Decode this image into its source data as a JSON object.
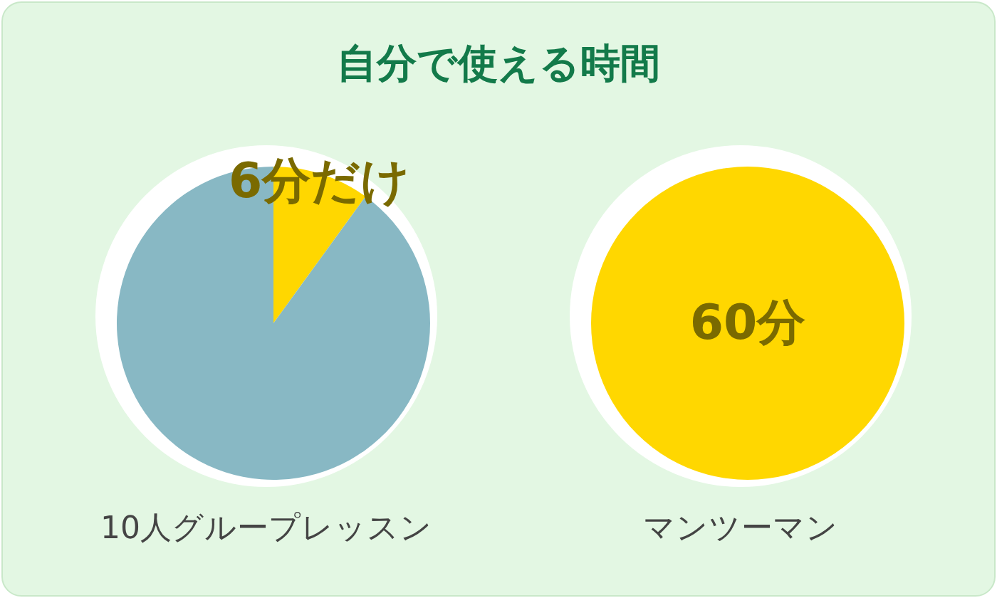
{
  "chart_data": [
    {
      "type": "pie",
      "title": "自分で使える時間",
      "xlabel": "10人グループレッスン",
      "categories": [
        null,
        null
      ],
      "values": [
        6,
        54
      ],
      "colors": [
        "#ffd700",
        "#88b8c4"
      ],
      "value_labels": [
        "6分だけ",
        null
      ]
    },
    {
      "type": "pie",
      "xlabel": "マンツーマン",
      "categories": [
        null
      ],
      "values": [
        60
      ],
      "colors": [
        "#ffd700"
      ],
      "value_labels": [
        "60分"
      ]
    }
  ]
}
